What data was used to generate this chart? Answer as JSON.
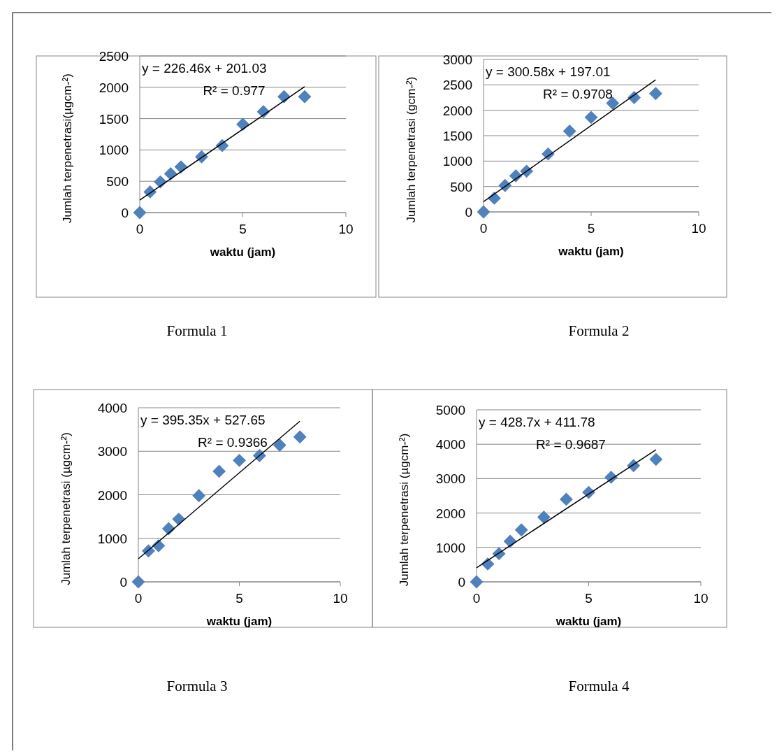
{
  "chart_data": [
    {
      "type": "scatter",
      "title": "Formula 1",
      "xlabel": "waktu (jam)",
      "ylabel": "Jumlah terpenetrasi(µgcm-²)",
      "xlim": [
        0,
        10
      ],
      "xticks": [
        0,
        5,
        10
      ],
      "ylim": [
        0,
        2500
      ],
      "yticks": [
        0,
        500,
        1000,
        1500,
        2000,
        2500
      ],
      "grid": "y",
      "marker": "diamond",
      "annotations": [
        "y = 226.46x + 201.03",
        "R² = 0.977"
      ],
      "series": [
        {
          "color": "#4f81bd",
          "x": [
            0,
            0.5,
            1,
            1.5,
            2,
            3,
            4,
            5,
            6,
            7,
            8
          ],
          "values": [
            0,
            330,
            490,
            620,
            730,
            890,
            1070,
            1410,
            1610,
            1850,
            1850
          ]
        },
        {
          "type": "line",
          "marker": "none",
          "color": "#000000",
          "x": [
            0,
            8
          ],
          "values": [
            200,
            2010
          ]
        }
      ]
    },
    {
      "type": "scatter",
      "title": "Formula 2",
      "xlabel": "waktu (jam)",
      "ylabel": "Jumlah terpenetrasi (gcm-²)",
      "xlim": [
        0,
        10
      ],
      "xticks": [
        0,
        5,
        10
      ],
      "ylim": [
        0,
        3000
      ],
      "yticks": [
        0,
        500,
        1000,
        1500,
        2000,
        2500,
        3000
      ],
      "grid": "y",
      "marker": "diamond",
      "annotations": [
        "y = 300.58x + 197.01",
        "R² = 0.9708"
      ],
      "series": [
        {
          "color": "#4f81bd",
          "x": [
            0,
            0.5,
            1,
            1.5,
            2,
            3,
            4,
            5,
            6,
            7,
            8
          ],
          "values": [
            0,
            270,
            520,
            710,
            800,
            1140,
            1590,
            1860,
            2140,
            2250,
            2330
          ]
        },
        {
          "type": "line",
          "marker": "none",
          "color": "#000000",
          "x": [
            0,
            8
          ],
          "values": [
            200,
            2600
          ]
        }
      ]
    },
    {
      "type": "scatter",
      "title": "Formula 3",
      "xlabel": "waktu (jam)",
      "ylabel": "Jumlah terpenetrasi (µgcm-²)",
      "xlim": [
        0,
        10
      ],
      "xticks": [
        0,
        5,
        10
      ],
      "ylim": [
        0,
        4000
      ],
      "yticks": [
        0,
        1000,
        2000,
        3000,
        4000
      ],
      "grid": "y",
      "marker": "diamond",
      "annotations": [
        "y = 395.35x + 527.65",
        "R² = 0.9366"
      ],
      "series": [
        {
          "color": "#4f81bd",
          "x": [
            0,
            0.5,
            1,
            1.5,
            2,
            3,
            4,
            5,
            6,
            7,
            8
          ],
          "values": [
            0,
            710,
            830,
            1220,
            1440,
            1980,
            2540,
            2790,
            2900,
            3140,
            3330
          ]
        },
        {
          "type": "line",
          "marker": "none",
          "color": "#000000",
          "x": [
            0,
            8
          ],
          "values": [
            530,
            3690
          ]
        }
      ]
    },
    {
      "type": "scatter",
      "title": "Formula 4",
      "xlabel": "waktu (jam)",
      "ylabel": "Jumlah terpenetrasi (µgcm-²)",
      "xlim": [
        0,
        10
      ],
      "xticks": [
        0,
        5,
        10
      ],
      "ylim": [
        0,
        5000
      ],
      "yticks": [
        0,
        1000,
        2000,
        3000,
        4000,
        5000
      ],
      "grid": "y",
      "marker": "diamond",
      "annotations": [
        "y = 428.7x + 411.78",
        "R² = 0.9687"
      ],
      "series": [
        {
          "color": "#4f81bd",
          "x": [
            0,
            0.5,
            1,
            1.5,
            2,
            3,
            4,
            5,
            6,
            7,
            8
          ],
          "values": [
            0,
            520,
            820,
            1180,
            1510,
            1880,
            2400,
            2600,
            3040,
            3380,
            3560
          ]
        },
        {
          "type": "line",
          "marker": "none",
          "color": "#000000",
          "x": [
            0,
            8
          ],
          "values": [
            410,
            3840
          ]
        }
      ]
    }
  ]
}
